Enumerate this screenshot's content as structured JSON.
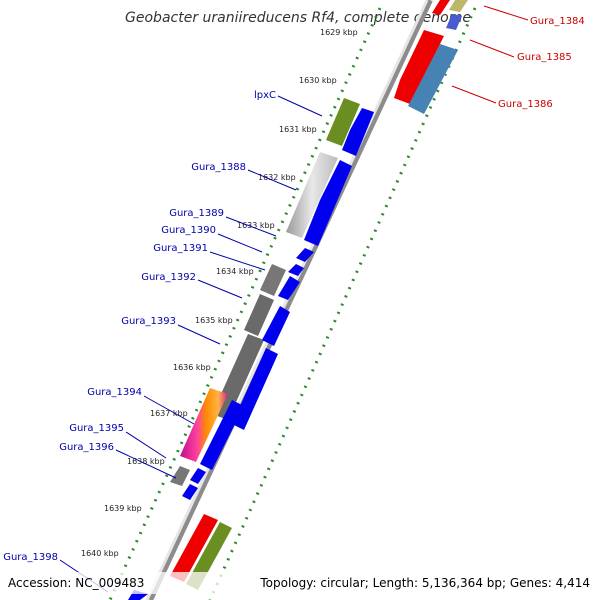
{
  "title": "Geobacter uraniireducens Rf4, complete genome",
  "footer": {
    "accession": "Accession: NC_009483",
    "summary": "Topology: circular; Length: 5,136,364 bp; Genes: 4,414"
  },
  "colors": {
    "backbone": "#8a8a8a",
    "ring_dots": "#2e8b2e",
    "label_blue": "#0000aa",
    "label_red": "#cc0000",
    "gene_blue": "#0000ee",
    "gene_red": "#ee0000",
    "gene_olive": "#6b8e23",
    "gene_steel": "#4682b4",
    "gene_gray": "#777777",
    "gene_silver": "#c8c8c8",
    "gene_khaki": "#bdb76b",
    "gene_magenta": "#e0208a",
    "gene_orange": "#ffa500"
  },
  "kbp_ticks": [
    "1629 kbp",
    "1630 kbp",
    "1631 kbp",
    "1632 kbp",
    "1633 kbp",
    "1634 kbp",
    "1635 kbp",
    "1636 kbp",
    "1637 kbp",
    "1638 kbp",
    "1639 kbp",
    "1640 kbp"
  ],
  "gene_labels_left": [
    "lpxC",
    "Gura_1388",
    "Gura_1389",
    "Gura_1390",
    "Gura_1391",
    "Gura_1392",
    "Gura_1393",
    "Gura_1394",
    "Gura_1395",
    "Gura_1396",
    "Gura_1398"
  ],
  "gene_labels_right": [
    "Gura_1384",
    "Gura_1385",
    "Gura_1386"
  ]
}
